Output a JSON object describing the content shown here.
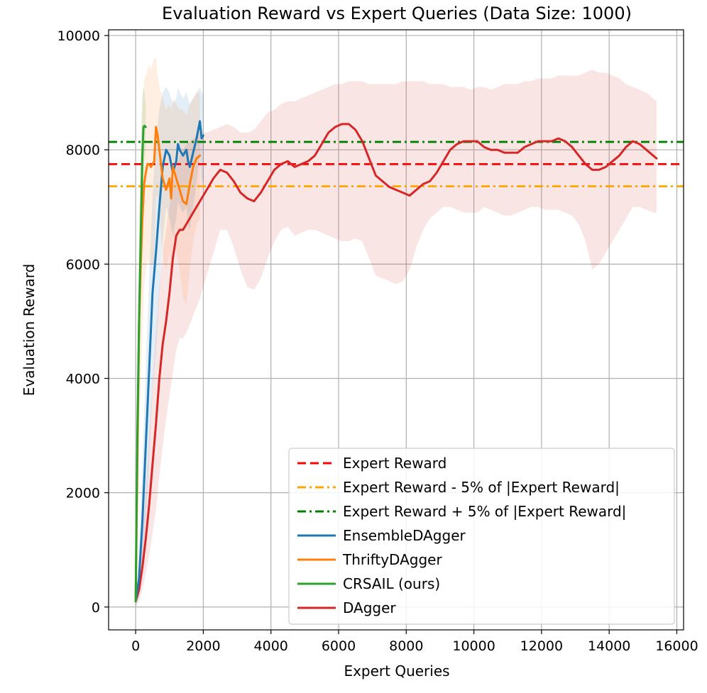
{
  "chart_data": {
    "type": "line",
    "title": "Evaluation Reward vs Expert Queries (Data Size: 1000)",
    "xlabel": "Expert Queries",
    "ylabel": "Evaluation Reward",
    "xlim": [
      -800,
      16200
    ],
    "ylim": [
      -400,
      10100
    ],
    "xticks": [
      0,
      2000,
      4000,
      6000,
      8000,
      10000,
      12000,
      14000,
      16000
    ],
    "yticks": [
      0,
      2000,
      4000,
      6000,
      8000,
      10000
    ],
    "grid": true,
    "legend_position": "lower-right",
    "reference_lines": [
      {
        "name": "Expert Reward",
        "y": 7750,
        "color": "#ff0000",
        "style": "dashed"
      },
      {
        "name": "Expert Reward - 5% of |Expert Reward|",
        "y": 7362,
        "color": "#ffa500",
        "style": "dashdot"
      },
      {
        "name": "Expert Reward + 5% of |Expert Reward|",
        "y": 8138,
        "color": "#008000",
        "style": "dashdot"
      }
    ],
    "series": [
      {
        "name": "EnsembleDAgger",
        "color": "#1f77b4",
        "x": [
          0,
          100,
          200,
          350,
          500,
          600,
          700,
          800,
          900,
          1000,
          1100,
          1200,
          1250,
          1300,
          1400,
          1500,
          1550,
          1600,
          1700,
          1800,
          1900,
          1950,
          2000
        ],
        "y": [
          100,
          500,
          1500,
          3500,
          5500,
          6200,
          7000,
          7700,
          8000,
          7900,
          7600,
          7800,
          8100,
          8000,
          7900,
          8000,
          7800,
          7700,
          7950,
          8200,
          8500,
          8200,
          8250
        ],
        "upper": [
          200,
          900,
          2500,
          5000,
          7200,
          8200,
          8700,
          9000,
          9100,
          9000,
          8800,
          8900,
          9100,
          9000,
          8900,
          9000,
          8900,
          8800,
          8900,
          9000,
          9100,
          9000,
          9000
        ],
        "lower": [
          0,
          200,
          700,
          2000,
          3800,
          4500,
          5500,
          6400,
          7000,
          6800,
          6500,
          6800,
          7100,
          7000,
          6900,
          7000,
          6700,
          6600,
          7000,
          7400,
          7900,
          7400,
          7500
        ]
      },
      {
        "name": "ThriftyDAgger",
        "color": "#ff7f0e",
        "x": [
          0,
          50,
          100,
          150,
          200,
          250,
          300,
          350,
          400,
          450,
          500,
          550,
          600,
          650,
          700,
          800,
          900,
          1000,
          1050,
          1100,
          1200,
          1300,
          1400,
          1500,
          1600,
          1700,
          1800,
          1900
        ],
        "y": [
          100,
          2500,
          5000,
          6000,
          6800,
          7400,
          7600,
          7750,
          7750,
          7700,
          7750,
          7800,
          8400,
          8250,
          8000,
          7500,
          7300,
          7500,
          7150,
          7700,
          7500,
          7300,
          7100,
          7050,
          7400,
          7700,
          7850,
          7900
        ],
        "upper": [
          200,
          3500,
          6800,
          8000,
          8800,
          9200,
          9300,
          9400,
          9500,
          9400,
          9500,
          9600,
          9600,
          9300,
          9100,
          8900,
          8700,
          8800,
          8700,
          8900,
          8800,
          8700,
          8700,
          8600,
          8800,
          8900,
          9000,
          9000
        ],
        "lower": [
          0,
          1500,
          3200,
          4000,
          4800,
          5600,
          5900,
          6100,
          6000,
          6000,
          6000,
          6000,
          7200,
          7200,
          6900,
          6100,
          5900,
          6200,
          5600,
          6500,
          6200,
          5900,
          5400,
          5300,
          5900,
          6400,
          6700,
          6800
        ]
      },
      {
        "name": "CRSAIL (ours)",
        "color": "#2ca02c",
        "x": [
          0,
          50,
          100,
          150,
          200,
          230,
          260,
          280,
          300
        ],
        "y": [
          100,
          3000,
          5000,
          6500,
          7900,
          8400,
          8420,
          8400,
          8400
        ],
        "upper": [
          200,
          4000,
          6500,
          8000,
          9000,
          9100,
          9000,
          8900,
          8800
        ],
        "lower": [
          0,
          2000,
          3500,
          5000,
          6800,
          7700,
          7800,
          7900,
          8000
        ]
      },
      {
        "name": "DAgger",
        "color": "#d62728",
        "x": [
          0,
          100,
          200,
          300,
          400,
          500,
          600,
          700,
          800,
          900,
          1000,
          1100,
          1200,
          1300,
          1400,
          1500,
          1700,
          1900,
          2100,
          2300,
          2500,
          2700,
          2900,
          3100,
          3300,
          3500,
          3700,
          3900,
          4100,
          4300,
          4500,
          4700,
          4900,
          5100,
          5300,
          5500,
          5700,
          5900,
          6100,
          6300,
          6500,
          6700,
          6900,
          7100,
          7300,
          7500,
          7700,
          7900,
          8100,
          8300,
          8500,
          8700,
          8900,
          9100,
          9300,
          9500,
          9700,
          9900,
          10100,
          10300,
          10500,
          10700,
          10900,
          11100,
          11300,
          11500,
          11700,
          11900,
          12100,
          12300,
          12500,
          12700,
          12900,
          13100,
          13300,
          13500,
          13700,
          13900,
          14100,
          14300,
          14500,
          14700,
          14900,
          15100,
          15300,
          15400
        ],
        "y": [
          100,
          300,
          700,
          1200,
          1800,
          2500,
          3200,
          4000,
          4600,
          5000,
          5500,
          6100,
          6500,
          6600,
          6600,
          6700,
          6900,
          7100,
          7300,
          7500,
          7650,
          7600,
          7450,
          7250,
          7150,
          7100,
          7250,
          7450,
          7650,
          7750,
          7800,
          7700,
          7750,
          7800,
          7900,
          8100,
          8300,
          8400,
          8450,
          8450,
          8350,
          8150,
          7850,
          7550,
          7450,
          7350,
          7300,
          7250,
          7200,
          7300,
          7400,
          7450,
          7600,
          7800,
          8000,
          8100,
          8150,
          8150,
          8150,
          8050,
          8000,
          8000,
          7950,
          7950,
          7950,
          8050,
          8100,
          8150,
          8150,
          8150,
          8200,
          8150,
          8050,
          7900,
          7750,
          7650,
          7650,
          7700,
          7800,
          7900,
          8050,
          8150,
          8100,
          8000,
          7900,
          7850
        ],
        "upper": [
          200,
          500,
          1200,
          2000,
          3000,
          3900,
          4800,
          5600,
          6200,
          6600,
          7000,
          7400,
          7700,
          7900,
          8000,
          8100,
          8200,
          8300,
          8300,
          8350,
          8400,
          8450,
          8400,
          8300,
          8300,
          8350,
          8500,
          8650,
          8700,
          8800,
          8850,
          8850,
          8900,
          8950,
          9000,
          9050,
          9100,
          9150,
          9150,
          9200,
          9200,
          9200,
          9150,
          9150,
          9150,
          9150,
          9150,
          9200,
          9200,
          9200,
          9200,
          9150,
          9150,
          9150,
          9100,
          9100,
          9100,
          9050,
          9100,
          9100,
          9050,
          9100,
          9150,
          9150,
          9150,
          9200,
          9200,
          9250,
          9250,
          9250,
          9300,
          9300,
          9300,
          9300,
          9350,
          9400,
          9350,
          9350,
          9300,
          9250,
          9150,
          9100,
          9050,
          9000,
          8900,
          8850
        ],
        "lower": [
          0,
          100,
          300,
          600,
          900,
          1300,
          1700,
          2300,
          2800,
          3300,
          3700,
          4100,
          4500,
          4700,
          4700,
          4800,
          5100,
          5400,
          5800,
          6200,
          6600,
          6600,
          6300,
          5900,
          5600,
          5550,
          5750,
          6100,
          6400,
          6600,
          6650,
          6500,
          6550,
          6600,
          6600,
          6550,
          6500,
          6450,
          6400,
          6400,
          6450,
          6400,
          6100,
          5800,
          5750,
          5700,
          5650,
          5700,
          5900,
          6300,
          6600,
          6800,
          6900,
          7000,
          7000,
          6950,
          6900,
          6900,
          6900,
          7000,
          6950,
          6900,
          6850,
          6850,
          6900,
          6950,
          7000,
          7000,
          6950,
          6950,
          6950,
          6900,
          6850,
          6700,
          6400,
          5900,
          6000,
          6200,
          6400,
          6600,
          6800,
          7000,
          7000,
          6950,
          6900,
          6900
        ]
      }
    ],
    "legend": [
      "Expert Reward",
      "Expert Reward - 5% of |Expert Reward|",
      "Expert Reward + 5% of |Expert Reward|",
      "EnsembleDAgger",
      "ThriftyDAgger",
      "CRSAIL (ours)",
      "DAgger"
    ]
  }
}
